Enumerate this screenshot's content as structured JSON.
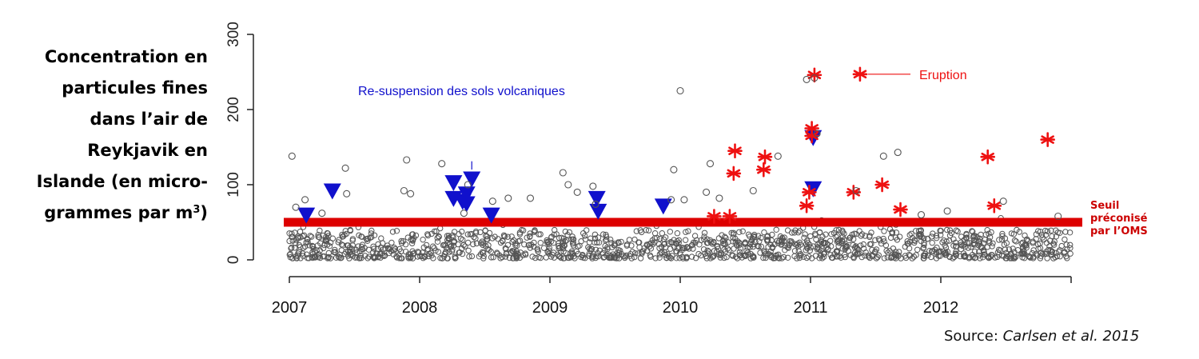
{
  "ylabel_lines": [
    "Concentration en",
    "particules fines",
    "dans l’air de",
    "Reykjavik en",
    "Islande (en micro-",
    "grammes par m",
    "3",
    ")"
  ],
  "threshold_label_lines": [
    "Seuil",
    "préconisé",
    "par l’OMS"
  ],
  "source_prefix": "Source: ",
  "source_citation": "Carlsen et al. 2015",
  "colors": {
    "threshold": "#dd0000",
    "background_points": "#555555",
    "resuspension": "#1010cc",
    "eruption": "#ee1111"
  },
  "chart_data": {
    "type": "scatter",
    "xlim": [
      2007.0,
      2013.0
    ],
    "ylim": [
      0,
      300
    ],
    "yticks": [
      0,
      100,
      200,
      300
    ],
    "xticks": [
      2007,
      2008,
      2009,
      2010,
      2011,
      2012
    ],
    "xtick_labels": [
      "2007",
      "2008",
      "2009",
      "2010",
      "2011",
      "2012"
    ],
    "threshold": 50,
    "annotations": {
      "resuspension": {
        "text": "Re-suspension des sols volcaniques",
        "arrow_x": 2008.4,
        "arrow_y_from": 195,
        "arrow_y_to": 118
      },
      "eruption": {
        "text": "Eruption",
        "line_from_x": 2011.44,
        "line_to_x": 2011.75,
        "y": 247
      }
    },
    "series": [
      {
        "marker": "triangle",
        "points": [
          [
            2007.13,
            60
          ],
          [
            2007.33,
            92
          ],
          [
            2008.26,
            103
          ],
          [
            2008.26,
            82
          ],
          [
            2008.33,
            78
          ],
          [
            2008.36,
            88
          ],
          [
            2008.4,
            108
          ],
          [
            2008.36,
            75
          ],
          [
            2008.55,
            60
          ],
          [
            2009.36,
            82
          ],
          [
            2009.37,
            65
          ],
          [
            2009.87,
            72
          ],
          [
            2011.02,
            163
          ],
          [
            2011.02,
            95
          ]
        ]
      },
      {
        "marker": "asterisk",
        "points": [
          [
            2011.03,
            246
          ],
          [
            2011.38,
            247
          ],
          [
            2010.42,
            145
          ],
          [
            2010.41,
            115
          ],
          [
            2010.65,
            137
          ],
          [
            2010.64,
            120
          ],
          [
            2011.01,
            175
          ],
          [
            2011.01,
            165
          ],
          [
            2010.99,
            90
          ],
          [
            2010.97,
            72
          ],
          [
            2011.33,
            90
          ],
          [
            2011.55,
            100
          ],
          [
            2011.69,
            67
          ],
          [
            2012.36,
            137
          ],
          [
            2012.41,
            72
          ],
          [
            2012.82,
            160
          ],
          [
            2010.26,
            58
          ],
          [
            2010.38,
            58
          ]
        ]
      },
      {
        "marker": "circle",
        "points": [
          [
            2007.02,
            138
          ],
          [
            2007.05,
            70
          ],
          [
            2007.12,
            80
          ],
          [
            2007.25,
            62
          ],
          [
            2007.43,
            122
          ],
          [
            2007.44,
            88
          ],
          [
            2007.9,
            133
          ],
          [
            2007.88,
            92
          ],
          [
            2007.93,
            88
          ],
          [
            2008.17,
            128
          ],
          [
            2008.37,
            100
          ],
          [
            2008.34,
            62
          ],
          [
            2008.56,
            78
          ],
          [
            2008.68,
            82
          ],
          [
            2008.85,
            82
          ],
          [
            2009.1,
            116
          ],
          [
            2009.14,
            100
          ],
          [
            2009.33,
            98
          ],
          [
            2009.21,
            90
          ],
          [
            2009.35,
            74
          ],
          [
            2009.95,
            120
          ],
          [
            2010.0,
            225
          ],
          [
            2010.03,
            80
          ],
          [
            2009.93,
            80
          ],
          [
            2010.2,
            90
          ],
          [
            2010.23,
            128
          ],
          [
            2010.3,
            82
          ],
          [
            2010.56,
            92
          ],
          [
            2010.75,
            138
          ],
          [
            2010.97,
            240
          ],
          [
            2011.03,
            242
          ],
          [
            2011.05,
            168
          ],
          [
            2011.35,
            92
          ],
          [
            2011.56,
            138
          ],
          [
            2011.67,
            143
          ],
          [
            2011.85,
            60
          ],
          [
            2012.05,
            65
          ],
          [
            2012.48,
            78
          ],
          [
            2012.9,
            58
          ]
        ]
      }
    ]
  }
}
